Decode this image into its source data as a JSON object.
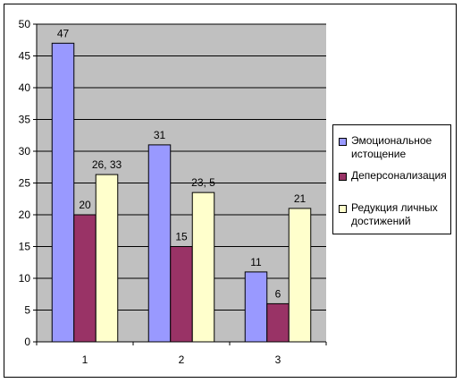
{
  "chart_data": {
    "type": "bar",
    "categories": [
      "1",
      "2",
      "3"
    ],
    "series": [
      {
        "name": "Эмоциональное истощение",
        "values": [
          47,
          31,
          11
        ],
        "labels": [
          "47",
          "31",
          "11"
        ],
        "color": "#9999ff"
      },
      {
        "name": "Деперсонализация",
        "values": [
          20,
          15,
          6
        ],
        "labels": [
          "20",
          "15",
          "6"
        ],
        "color": "#993366"
      },
      {
        "name": "Редукция личных достижений",
        "values": [
          26.33,
          23.5,
          21
        ],
        "labels": [
          "26, 33",
          "23, 5",
          "21"
        ],
        "color": "#ffffcc"
      }
    ],
    "ylim": [
      0,
      50
    ],
    "yticks": [
      "0",
      "5",
      "10",
      "15",
      "20",
      "25",
      "30",
      "35",
      "40",
      "45",
      "50"
    ],
    "grid": true,
    "plot_background": "#c0c0c0",
    "legend_position": "right",
    "title": "",
    "xlabel": "",
    "ylabel": ""
  }
}
